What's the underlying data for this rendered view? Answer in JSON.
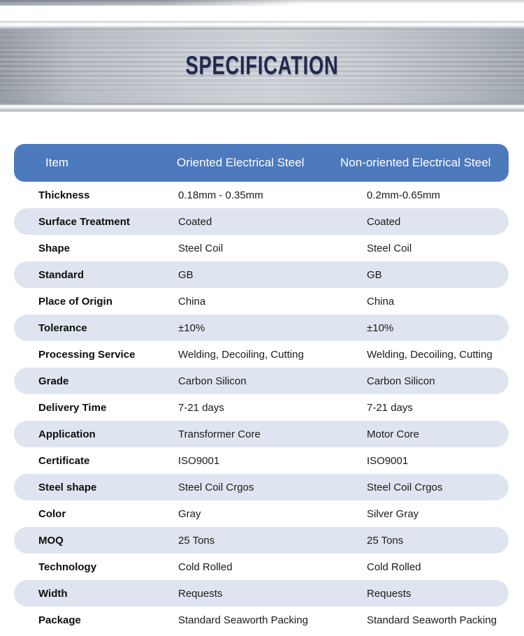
{
  "banner": {
    "title": "SPECIFICATION"
  },
  "spec_table": {
    "columns": [
      "Item",
      "Oriented Electrical Steel",
      "Non-oriented Electrical Steel"
    ],
    "rows": [
      {
        "label": "Thickness",
        "oriented": "0.18mm - 0.35mm",
        "non_oriented": "0.2mm-0.65mm"
      },
      {
        "label": "Surface Treatment",
        "oriented": "Coated",
        "non_oriented": "Coated"
      },
      {
        "label": "Shape",
        "oriented": "Steel Coil",
        "non_oriented": "Steel Coil"
      },
      {
        "label": "Standard",
        "oriented": "GB",
        "non_oriented": "GB"
      },
      {
        "label": "Place of Origin",
        "oriented": "China",
        "non_oriented": "China"
      },
      {
        "label": "Tolerance",
        "oriented": "±10%",
        "non_oriented": "±10%"
      },
      {
        "label": "Processing Service",
        "oriented": "Welding, Decoiling, Cutting",
        "non_oriented": "Welding, Decoiling, Cutting"
      },
      {
        "label": "Grade",
        "oriented": "Carbon Silicon",
        "non_oriented": "Carbon Silicon"
      },
      {
        "label": "Delivery Time",
        "oriented": "7-21 days",
        "non_oriented": "7-21 days"
      },
      {
        "label": "Application",
        "oriented": "Transformer Core",
        "non_oriented": "Motor Core"
      },
      {
        "label": "Certificate",
        "oriented": "ISO9001",
        "non_oriented": "ISO9001"
      },
      {
        "label": "Steel shape",
        "oriented": "Steel Coil Crgos",
        "non_oriented": "Steel Coil Crgos"
      },
      {
        "label": "Color",
        "oriented": "Gray",
        "non_oriented": "Silver Gray"
      },
      {
        "label": "MOQ",
        "oriented": "25 Tons",
        "non_oriented": "25 Tons"
      },
      {
        "label": "Technology",
        "oriented": "Cold Rolled",
        "non_oriented": "Cold Rolled"
      },
      {
        "label": "Width",
        "oriented": "Requests",
        "non_oriented": "Requests"
      },
      {
        "label": "Package",
        "oriented": "Standard Seaworth Packing",
        "non_oriented": "Standard Seaworth Packing"
      }
    ]
  },
  "colors": {
    "header_bg": "#4d79bd",
    "alt_row_bg": "#dee5f0",
    "title_color": "#20294e"
  }
}
